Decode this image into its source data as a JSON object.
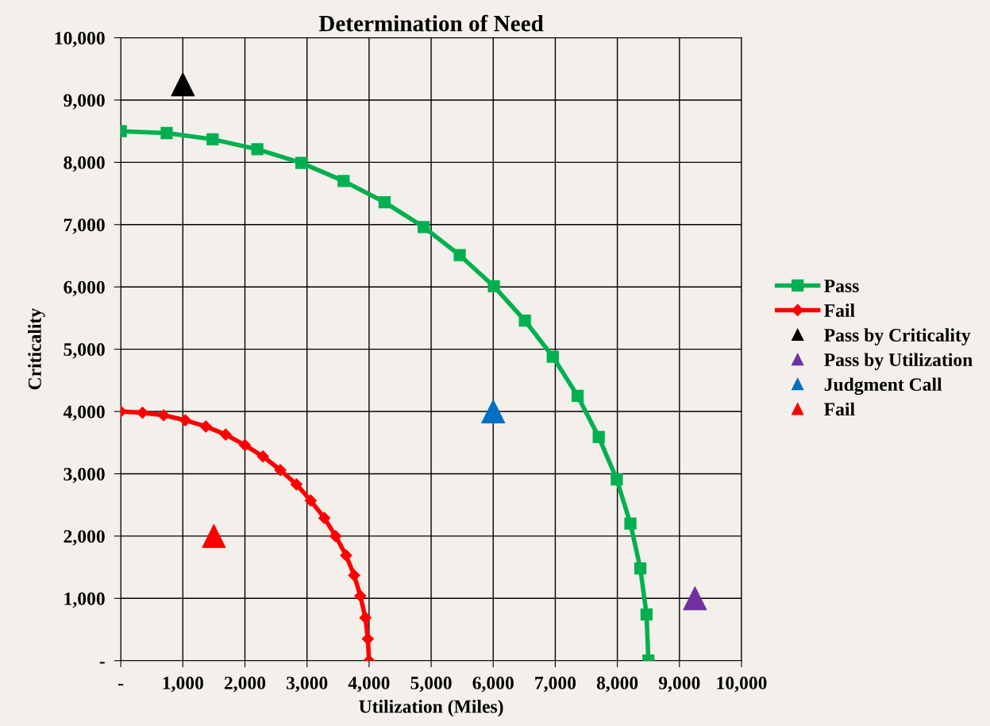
{
  "chart_data": {
    "type": "line",
    "title": "Determination of Need",
    "xlabel": "Utilization (Miles)",
    "ylabel": "Criticality",
    "xlim": [
      0,
      10000
    ],
    "ylim": [
      0,
      10000
    ],
    "xticks": [
      {
        "value": 0,
        "label": "-"
      },
      {
        "value": 1000,
        "label": "1,000"
      },
      {
        "value": 2000,
        "label": "2,000"
      },
      {
        "value": 3000,
        "label": "3,000"
      },
      {
        "value": 4000,
        "label": "4,000"
      },
      {
        "value": 5000,
        "label": "5,000"
      },
      {
        "value": 6000,
        "label": "6,000"
      },
      {
        "value": 7000,
        "label": "7,000"
      },
      {
        "value": 8000,
        "label": "8,000"
      },
      {
        "value": 9000,
        "label": "9,000"
      },
      {
        "value": 10000,
        "label": "10,000"
      }
    ],
    "yticks": [
      {
        "value": 0,
        "label": "-"
      },
      {
        "value": 1000,
        "label": "1,000"
      },
      {
        "value": 2000,
        "label": "2,000"
      },
      {
        "value": 3000,
        "label": "3,000"
      },
      {
        "value": 4000,
        "label": "4,000"
      },
      {
        "value": 5000,
        "label": "5,000"
      },
      {
        "value": 6000,
        "label": "6,000"
      },
      {
        "value": 7000,
        "label": "7,000"
      },
      {
        "value": 8000,
        "label": "8,000"
      },
      {
        "value": 9000,
        "label": "9,000"
      },
      {
        "value": 10000,
        "label": "10,000"
      }
    ],
    "grid": true,
    "legend": "right",
    "series": [
      {
        "name": "Pass",
        "marker": "square",
        "color": "#00b050",
        "x": [
          0,
          740,
          1480,
          2200,
          2910,
          3590,
          4250,
          4880,
          5460,
          6010,
          6510,
          6960,
          7360,
          7700,
          7990,
          8210,
          8370,
          8470,
          8500
        ],
        "values": [
          8500,
          8470,
          8370,
          8210,
          7990,
          7700,
          7360,
          6960,
          6510,
          6010,
          5460,
          4880,
          4250,
          3590,
          2910,
          2200,
          1480,
          740,
          0
        ]
      },
      {
        "name": "Fail",
        "marker": "diamond",
        "color": "#ff0000",
        "x": [
          0,
          350,
          690,
          1040,
          1370,
          1690,
          2000,
          2290,
          2570,
          2830,
          3060,
          3280,
          3460,
          3630,
          3760,
          3860,
          3940,
          3980,
          4000
        ],
        "values": [
          4000,
          3980,
          3940,
          3860,
          3760,
          3630,
          3460,
          3280,
          3060,
          2830,
          2570,
          2290,
          2000,
          1690,
          1370,
          1040,
          690,
          350,
          0
        ]
      },
      {
        "name": "Pass by Criticality",
        "type": "scatter",
        "marker": "triangle",
        "color": "#000000",
        "x": [
          1000
        ],
        "values": [
          9250
        ]
      },
      {
        "name": "Pass by Utilization",
        "type": "scatter",
        "marker": "triangle",
        "color": "#7030a0",
        "x": [
          9250
        ],
        "values": [
          1000
        ]
      },
      {
        "name": "Judgment Call",
        "type": "scatter",
        "marker": "triangle",
        "color": "#0070c0",
        "x": [
          6000
        ],
        "values": [
          4000
        ]
      },
      {
        "name": "Fail",
        "type": "scatter",
        "marker": "triangle",
        "color": "#ff0000",
        "x": [
          1500
        ],
        "values": [
          2000
        ]
      }
    ]
  }
}
